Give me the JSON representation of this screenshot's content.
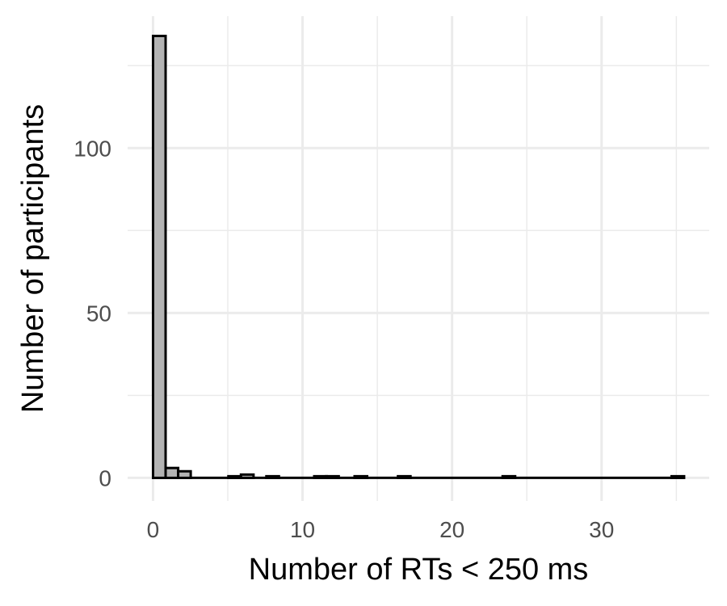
{
  "chart_data": {
    "type": "bar",
    "xlabel": "Number of RTs < 250 ms",
    "ylabel": "Number of participants",
    "xlim": [
      -1.7,
      37.2
    ],
    "ylim": [
      -7,
      140
    ],
    "x_ticks": [
      0,
      10,
      20,
      30
    ],
    "y_ticks": [
      0,
      50,
      100
    ],
    "y_minor_ticks": [
      25,
      75,
      125
    ],
    "x_minor_ticks": [
      5,
      15,
      25,
      35
    ],
    "grid": true,
    "bin_width": 0.84,
    "bin_start": 0,
    "x_max": 35.5,
    "bins": [
      {
        "x": 0.42,
        "value": 134
      },
      {
        "x": 1.26,
        "value": 3
      },
      {
        "x": 2.1,
        "value": 2
      },
      {
        "x": 5.46,
        "value": 0.5
      },
      {
        "x": 6.3,
        "value": 1
      },
      {
        "x": 8.0,
        "value": 0.5
      },
      {
        "x": 11.2,
        "value": 0.5
      },
      {
        "x": 12.0,
        "value": 0.5
      },
      {
        "x": 13.9,
        "value": 0.5
      },
      {
        "x": 16.8,
        "value": 0.5
      },
      {
        "x": 23.8,
        "value": 0.5
      },
      {
        "x": 35.1,
        "value": 0.5
      }
    ],
    "colors": {
      "bar_fill": "#b3b3b3",
      "bar_stroke": "#000000",
      "grid": "#ebebeb"
    }
  }
}
